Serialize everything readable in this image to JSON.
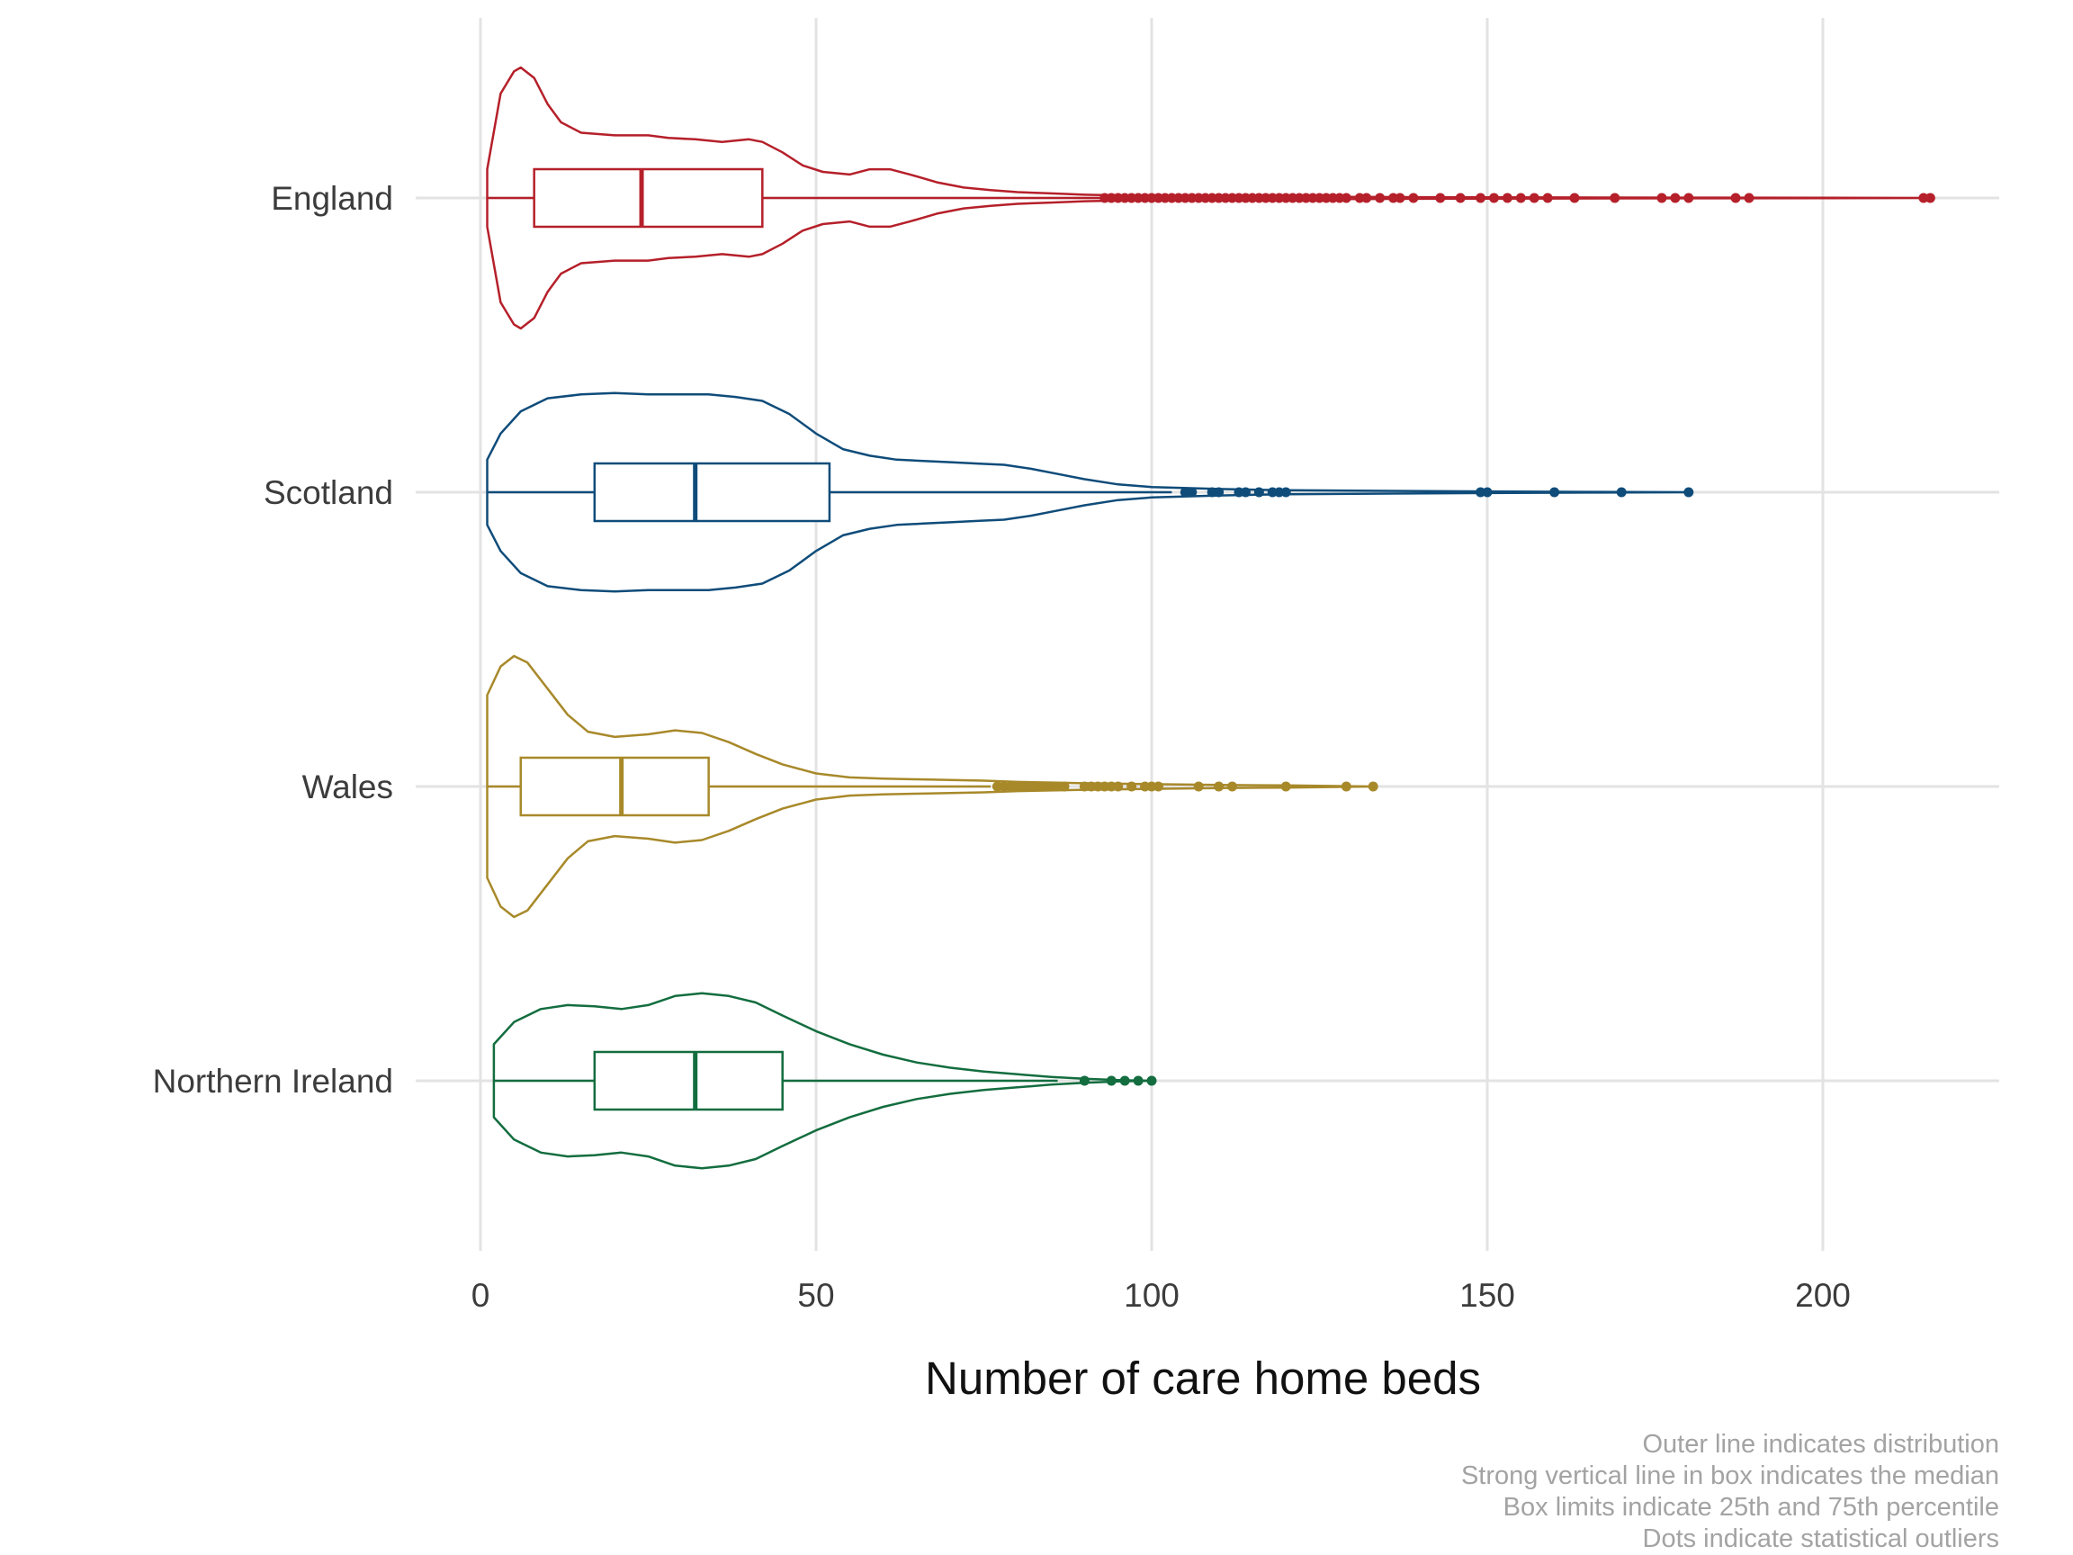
{
  "chart_data": {
    "type": "violin-box",
    "xlabel": "Number of care home beds",
    "ylabel": "",
    "xlim": [
      0,
      225
    ],
    "x_ticks": [
      0,
      50,
      100,
      150,
      200
    ],
    "grid": true,
    "orientation": "horizontal",
    "caption": [
      "Outer line indicates distribution",
      "Strong vertical line in box indicates the median",
      "Box limits indicate 25th and 75th percentile",
      "Dots indicate statistical outliers"
    ],
    "series": [
      {
        "name": "England",
        "color": "#b5202a",
        "q1": 8,
        "median": 24,
        "q3": 42,
        "whisker_low": 1,
        "whisker_high": 93,
        "violin": [
          [
            1,
            0
          ],
          [
            1,
            0.22
          ],
          [
            3,
            0.8
          ],
          [
            5,
            0.97
          ],
          [
            6,
            1.0
          ],
          [
            8,
            0.92
          ],
          [
            10,
            0.72
          ],
          [
            12,
            0.58
          ],
          [
            15,
            0.5
          ],
          [
            20,
            0.48
          ],
          [
            25,
            0.48
          ],
          [
            28,
            0.46
          ],
          [
            32,
            0.45
          ],
          [
            36,
            0.43
          ],
          [
            40,
            0.45
          ],
          [
            42,
            0.43
          ],
          [
            45,
            0.35
          ],
          [
            48,
            0.25
          ],
          [
            51,
            0.2
          ],
          [
            55,
            0.18
          ],
          [
            58,
            0.22
          ],
          [
            61,
            0.22
          ],
          [
            64,
            0.18
          ],
          [
            68,
            0.12
          ],
          [
            72,
            0.08
          ],
          [
            76,
            0.06
          ],
          [
            80,
            0.045
          ],
          [
            85,
            0.035
          ],
          [
            90,
            0.025
          ],
          [
            95,
            0.02
          ],
          [
            100,
            0.016
          ],
          [
            110,
            0.012
          ],
          [
            120,
            0.01
          ],
          [
            140,
            0.006
          ],
          [
            160,
            0.004
          ],
          [
            180,
            0.003
          ],
          [
            200,
            0.002
          ],
          [
            215,
            0
          ]
        ],
        "outliers": [
          93,
          94,
          95,
          96,
          97,
          98,
          99,
          100,
          101,
          102,
          103,
          104,
          105,
          106,
          107,
          108,
          109,
          110,
          111,
          112,
          113,
          114,
          115,
          116,
          117,
          118,
          119,
          120,
          121,
          122,
          123,
          124,
          125,
          126,
          127,
          128,
          129,
          131,
          132,
          134,
          136,
          137,
          139,
          143,
          146,
          149,
          151,
          153,
          155,
          157,
          159,
          163,
          169,
          176,
          178,
          180,
          187,
          189,
          215,
          216
        ]
      },
      {
        "name": "Scotland",
        "color": "#0f4c7a",
        "q1": 17,
        "median": 32,
        "q3": 52,
        "whisker_low": 1,
        "whisker_high": 103,
        "violin": [
          [
            1,
            0
          ],
          [
            1,
            0.25
          ],
          [
            3,
            0.45
          ],
          [
            6,
            0.62
          ],
          [
            10,
            0.72
          ],
          [
            15,
            0.75
          ],
          [
            20,
            0.76
          ],
          [
            25,
            0.75
          ],
          [
            30,
            0.75
          ],
          [
            34,
            0.75
          ],
          [
            38,
            0.73
          ],
          [
            42,
            0.7
          ],
          [
            46,
            0.6
          ],
          [
            50,
            0.45
          ],
          [
            54,
            0.33
          ],
          [
            58,
            0.28
          ],
          [
            62,
            0.25
          ],
          [
            66,
            0.24
          ],
          [
            70,
            0.23
          ],
          [
            74,
            0.22
          ],
          [
            78,
            0.21
          ],
          [
            82,
            0.18
          ],
          [
            86,
            0.14
          ],
          [
            90,
            0.1
          ],
          [
            95,
            0.06
          ],
          [
            100,
            0.04
          ],
          [
            110,
            0.025
          ],
          [
            120,
            0.015
          ],
          [
            135,
            0.01
          ],
          [
            150,
            0.006
          ],
          [
            165,
            0.003
          ],
          [
            180,
            0
          ]
        ],
        "outliers": [
          105,
          106,
          109,
          110,
          113,
          114,
          116,
          118,
          119,
          120,
          149,
          150,
          160,
          170,
          180
        ]
      },
      {
        "name": "Wales",
        "color": "#a8892a",
        "q1": 6,
        "median": 21,
        "q3": 34,
        "whisker_low": 1,
        "whisker_high": 76,
        "violin": [
          [
            1,
            0
          ],
          [
            1,
            0.7
          ],
          [
            3,
            0.92
          ],
          [
            5,
            1.0
          ],
          [
            7,
            0.95
          ],
          [
            10,
            0.75
          ],
          [
            13,
            0.55
          ],
          [
            16,
            0.42
          ],
          [
            20,
            0.38
          ],
          [
            25,
            0.4
          ],
          [
            29,
            0.43
          ],
          [
            33,
            0.41
          ],
          [
            37,
            0.34
          ],
          [
            41,
            0.25
          ],
          [
            45,
            0.17
          ],
          [
            50,
            0.1
          ],
          [
            55,
            0.07
          ],
          [
            60,
            0.06
          ],
          [
            65,
            0.055
          ],
          [
            70,
            0.05
          ],
          [
            75,
            0.045
          ],
          [
            80,
            0.035
          ],
          [
            85,
            0.03
          ],
          [
            90,
            0.025
          ],
          [
            100,
            0.018
          ],
          [
            110,
            0.012
          ],
          [
            120,
            0.008
          ],
          [
            133,
            0
          ]
        ],
        "outliers": [
          77,
          78,
          79,
          80,
          81,
          82,
          83,
          84,
          85,
          86,
          87,
          90,
          91,
          92,
          93,
          94,
          95,
          97,
          99,
          100,
          101,
          107,
          110,
          112,
          120,
          129,
          133
        ]
      },
      {
        "name": "Northern Ireland",
        "color": "#136d3f",
        "q1": 17,
        "median": 32,
        "q3": 45,
        "whisker_low": 2,
        "whisker_high": 86,
        "violin": [
          [
            2,
            0
          ],
          [
            2,
            0.28
          ],
          [
            5,
            0.45
          ],
          [
            9,
            0.55
          ],
          [
            13,
            0.58
          ],
          [
            17,
            0.57
          ],
          [
            21,
            0.55
          ],
          [
            25,
            0.58
          ],
          [
            29,
            0.65
          ],
          [
            33,
            0.67
          ],
          [
            37,
            0.65
          ],
          [
            41,
            0.6
          ],
          [
            45,
            0.5
          ],
          [
            50,
            0.38
          ],
          [
            55,
            0.28
          ],
          [
            60,
            0.2
          ],
          [
            65,
            0.14
          ],
          [
            70,
            0.1
          ],
          [
            75,
            0.07
          ],
          [
            80,
            0.05
          ],
          [
            85,
            0.03
          ],
          [
            90,
            0.015
          ],
          [
            95,
            0.005
          ],
          [
            100,
            0
          ]
        ],
        "outliers": [
          90,
          94,
          96,
          98,
          100
        ]
      }
    ]
  }
}
